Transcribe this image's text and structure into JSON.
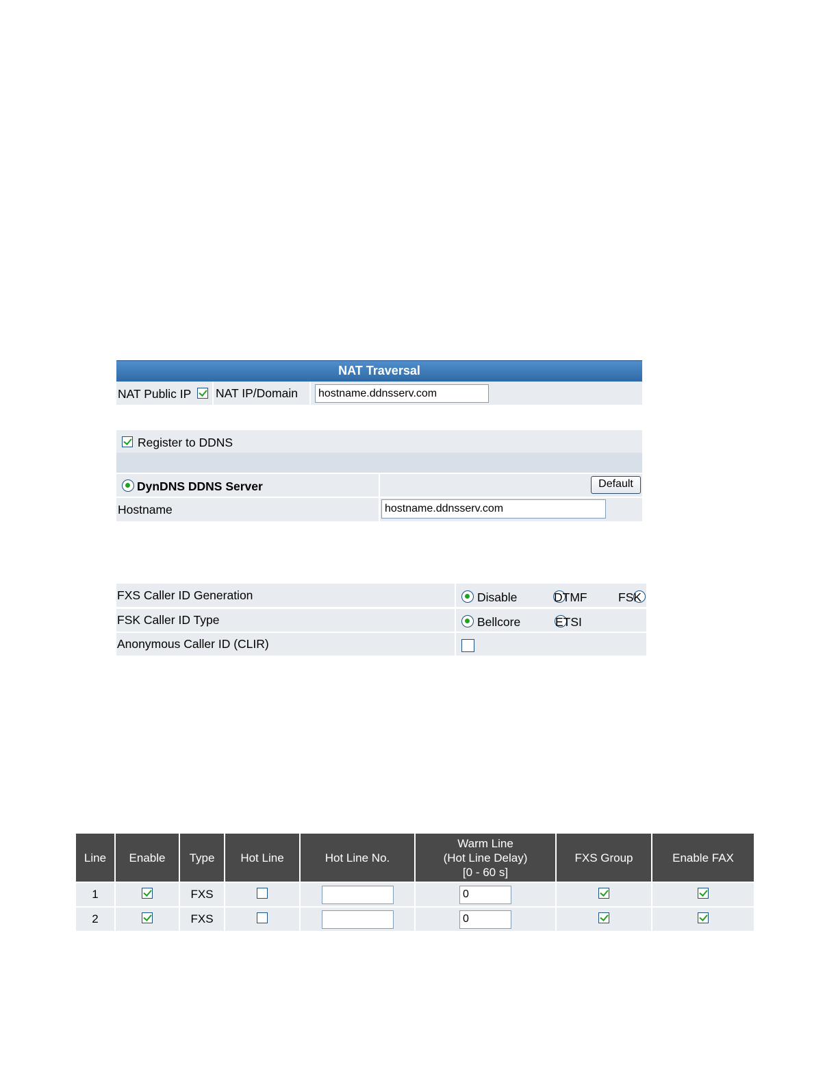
{
  "nat": {
    "title": "NAT Traversal",
    "public_ip_label": "NAT Public IP",
    "public_ip_checked": true,
    "ip_domain_label": "NAT IP/Domain",
    "ip_domain_value": "hostname.ddnsserv.com"
  },
  "ddns": {
    "register_label": "Register to DDNS",
    "register_checked": true,
    "server_label": "DynDNS DDNS Server",
    "default_button": "Default",
    "hostname_label": "Hostname",
    "hostname_value": "hostname.ddnsserv.com"
  },
  "caller_id": {
    "generation_label": "FXS Caller ID Generation",
    "generation_options": [
      "Disable",
      "DTMF",
      "FSK"
    ],
    "generation_selected": "Disable",
    "fsk_type_label": "FSK Caller ID Type",
    "fsk_type_options": [
      "Bellcore",
      "ETSI"
    ],
    "fsk_type_selected": "Bellcore",
    "anonymous_label": "Anonymous Caller ID (CLIR)",
    "anonymous_checked": false
  },
  "lines_table": {
    "headers": {
      "line": "Line",
      "enable": "Enable",
      "type": "Type",
      "hot_line": "Hot Line",
      "hot_line_no": "Hot Line No.",
      "warm_line_1": "Warm Line",
      "warm_line_2": "(Hot Line Delay)",
      "warm_line_3": "[0 - 60 s]",
      "fxs_group": "FXS Group",
      "enable_fax": "Enable FAX"
    },
    "rows": [
      {
        "line": "1",
        "enable": true,
        "type": "FXS",
        "hot_line": false,
        "hot_line_no": "",
        "warm_line": "0",
        "fxs_group": true,
        "enable_fax": true
      },
      {
        "line": "2",
        "enable": true,
        "type": "FXS",
        "hot_line": false,
        "hot_line_no": "",
        "warm_line": "0",
        "fxs_group": true,
        "enable_fax": true
      }
    ]
  },
  "colors": {
    "header_blue": "#3a78b5",
    "row_bg": "#e8ecf0",
    "table_header": "#494949",
    "check_green": "#21a121"
  }
}
